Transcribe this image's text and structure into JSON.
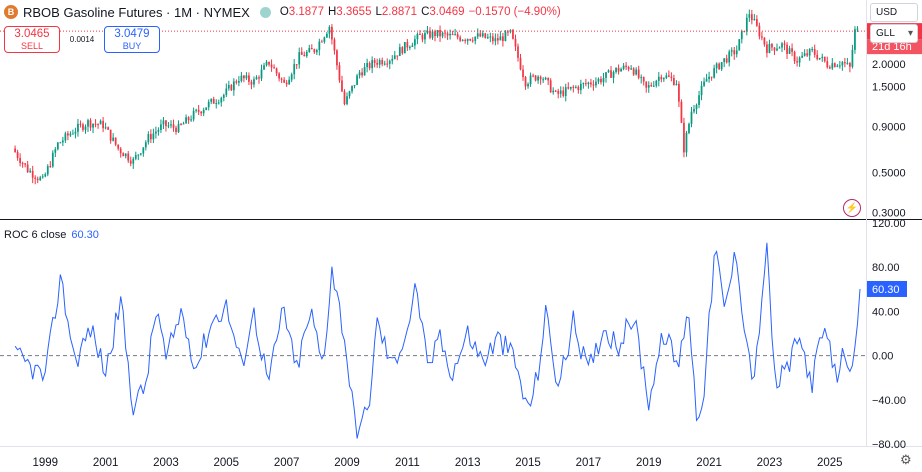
{
  "header": {
    "symbol_badge": "B",
    "title": "RBOB Gasoline Futures · 1M · NYMEX",
    "ohlc": [
      {
        "key": "O",
        "value": "3.1877"
      },
      {
        "key": "H",
        "value": "3.3655"
      },
      {
        "key": "L",
        "value": "2.8871"
      },
      {
        "key": "C",
        "value": "3.0469"
      },
      {
        "key": "",
        "value": "−0.1570 (−4.90%)"
      }
    ]
  },
  "trade": {
    "sell_price": "3.0465",
    "sell_label": "SELL",
    "spread": "0.0014",
    "buy_price": "3.0479",
    "buy_label": "BUY"
  },
  "toolbar": {
    "currency": "USD",
    "unit": "GLL"
  },
  "price_axis": {
    "labels": [
      "2.0000",
      "1.5000",
      "0.9000",
      "0.5000",
      "0.3000"
    ],
    "current_price": "3.0469",
    "countdown": "21d 16h"
  },
  "roc_pane": {
    "label": "ROC 6 close",
    "value": "60.30",
    "value_tag": "60.30"
  },
  "colors": {
    "up": "#089981",
    "down": "#f23645",
    "roc_line": "#2962ff"
  },
  "chart_data": [
    {
      "type": "candlestick",
      "title": "RBOB Gasoline Futures · 1M · NYMEX",
      "scale": "log",
      "interval": "1M",
      "x": [
        "1998-01",
        "1998-07",
        "1999-01",
        "1999-07",
        "2000-01",
        "2000-07",
        "2001-01",
        "2001-07",
        "2002-01",
        "2002-07",
        "2003-01",
        "2003-07",
        "2004-01",
        "2004-07",
        "2005-01",
        "2005-07",
        "2006-01",
        "2006-07",
        "2007-01",
        "2007-07",
        "2008-01",
        "2008-07",
        "2009-01",
        "2009-07",
        "2010-01",
        "2010-07",
        "2011-01",
        "2011-07",
        "2012-01",
        "2012-07",
        "2013-01",
        "2013-07",
        "2014-01",
        "2014-07",
        "2015-01",
        "2015-07",
        "2016-01",
        "2016-07",
        "2017-01",
        "2017-07",
        "2018-01",
        "2018-07",
        "2019-01",
        "2019-07",
        "2020-01",
        "2020-04",
        "2020-07",
        "2021-01",
        "2021-07",
        "2022-01",
        "2022-06",
        "2023-01",
        "2023-07",
        "2024-01",
        "2024-07",
        "2025-01",
        "2025-07",
        "2025-10",
        "2025-12"
      ],
      "close": [
        0.68,
        0.52,
        0.45,
        0.72,
        0.85,
        0.95,
        0.92,
        0.68,
        0.58,
        0.78,
        0.92,
        0.88,
        1.05,
        1.2,
        1.35,
        1.68,
        1.6,
        2.05,
        1.55,
        2.2,
        2.4,
        3.25,
        1.2,
        1.8,
        2.05,
        2.15,
        2.5,
        2.85,
        2.95,
        2.85,
        2.8,
        2.85,
        2.7,
        2.95,
        1.6,
        1.75,
        1.35,
        1.45,
        1.55,
        1.65,
        1.85,
        1.95,
        1.45,
        1.75,
        1.6,
        0.68,
        1.1,
        1.65,
        2.05,
        2.4,
        3.85,
        2.45,
        2.55,
        2.1,
        2.35,
        2.0,
        2.05,
        1.9,
        3.05
      ],
      "xlabel": "",
      "ylabel": ""
    },
    {
      "type": "line",
      "title": "ROC 6 close",
      "ylim": [
        -80,
        120
      ],
      "y_ticks": [
        "120.00",
        "80.00",
        "40.00",
        "0.00",
        "−40.00",
        "−80.00"
      ],
      "x_ticks": [
        "1999",
        "2001",
        "2003",
        "2005",
        "2007",
        "2009",
        "2011",
        "2013",
        "2015",
        "2017",
        "2019",
        "2021",
        "2023",
        "2025"
      ],
      "x": [
        1998.0,
        1998.5,
        1999.0,
        1999.3,
        1999.5,
        2000.0,
        2000.5,
        2001.0,
        2001.5,
        2001.9,
        2002.3,
        2002.7,
        2003.0,
        2003.5,
        2004.0,
        2004.5,
        2005.0,
        2005.5,
        2005.9,
        2006.4,
        2006.9,
        2007.3,
        2007.8,
        2008.2,
        2008.5,
        2008.9,
        2009.3,
        2009.7,
        2010.0,
        2010.5,
        2011.0,
        2011.3,
        2011.7,
        2012.0,
        2012.5,
        2013.0,
        2013.5,
        2014.0,
        2014.5,
        2015.0,
        2015.3,
        2015.6,
        2016.0,
        2016.5,
        2017.0,
        2017.5,
        2018.0,
        2018.5,
        2019.0,
        2019.5,
        2020.0,
        2020.3,
        2020.6,
        2020.85,
        2021.2,
        2021.5,
        2021.9,
        2022.2,
        2022.5,
        2022.9,
        2023.2,
        2023.6,
        2024.0,
        2024.4,
        2024.8,
        2025.2,
        2025.5,
        2025.8,
        2026.0
      ],
      "y": [
        0,
        -10,
        -20,
        35,
        70,
        -5,
        25,
        -15,
        50,
        -45,
        -30,
        45,
        -5,
        40,
        -10,
        30,
        45,
        -10,
        40,
        -25,
        45,
        -15,
        40,
        -10,
        80,
        20,
        -70,
        -50,
        30,
        -10,
        25,
        65,
        -20,
        20,
        -15,
        20,
        -5,
        15,
        0,
        -50,
        -20,
        40,
        -30,
        30,
        -15,
        25,
        10,
        35,
        -40,
        20,
        -10,
        50,
        -60,
        -25,
        100,
        40,
        95,
        20,
        -25,
        100,
        -30,
        -10,
        15,
        -25,
        25,
        -20,
        5,
        -15,
        60.3
      ],
      "series": [
        {
          "name": "ROC 6 close"
        }
      ]
    }
  ]
}
